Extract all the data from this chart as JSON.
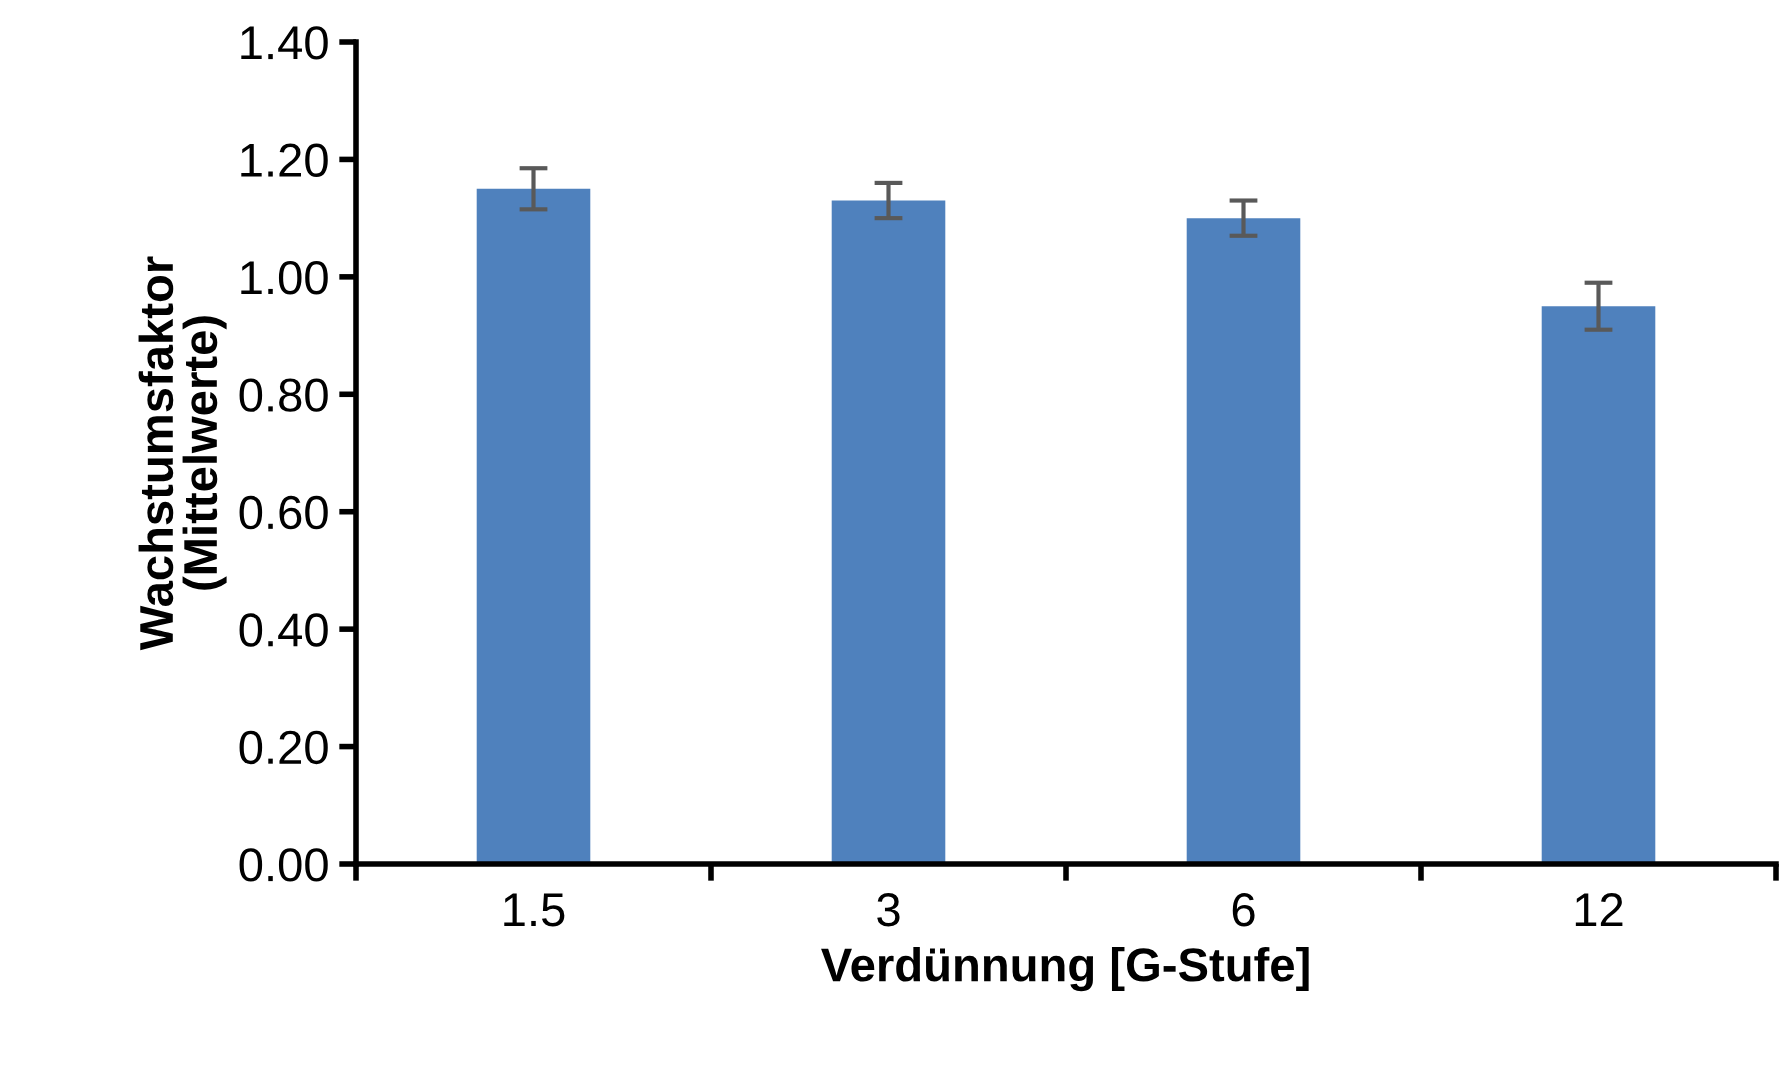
{
  "chart_data": {
    "type": "bar",
    "xlabel": "Verdünnung [G-Stufe]",
    "ylabel": "Wachstumsfaktor\n(Mittelwerte)",
    "categories": [
      "1.5",
      "3",
      "6",
      "12"
    ],
    "values": [
      1.15,
      1.13,
      1.1,
      0.95
    ],
    "errors": [
      0.035,
      0.03,
      0.03,
      0.04
    ],
    "color": "#4f81bd",
    "ylim": [
      0,
      1.4
    ],
    "yticks": [
      {
        "value": 0,
        "label": "0.00"
      },
      {
        "value": 0.2,
        "label": "0.20"
      },
      {
        "value": 0.4,
        "label": "0.40"
      },
      {
        "value": 0.6,
        "label": "0.60"
      },
      {
        "value": 0.8,
        "label": "0.80"
      },
      {
        "value": 1.0,
        "label": "1.00"
      },
      {
        "value": 1.2,
        "label": "1.20"
      },
      {
        "value": 1.4,
        "label": "1.40"
      }
    ],
    "grid": false,
    "legend": false
  }
}
